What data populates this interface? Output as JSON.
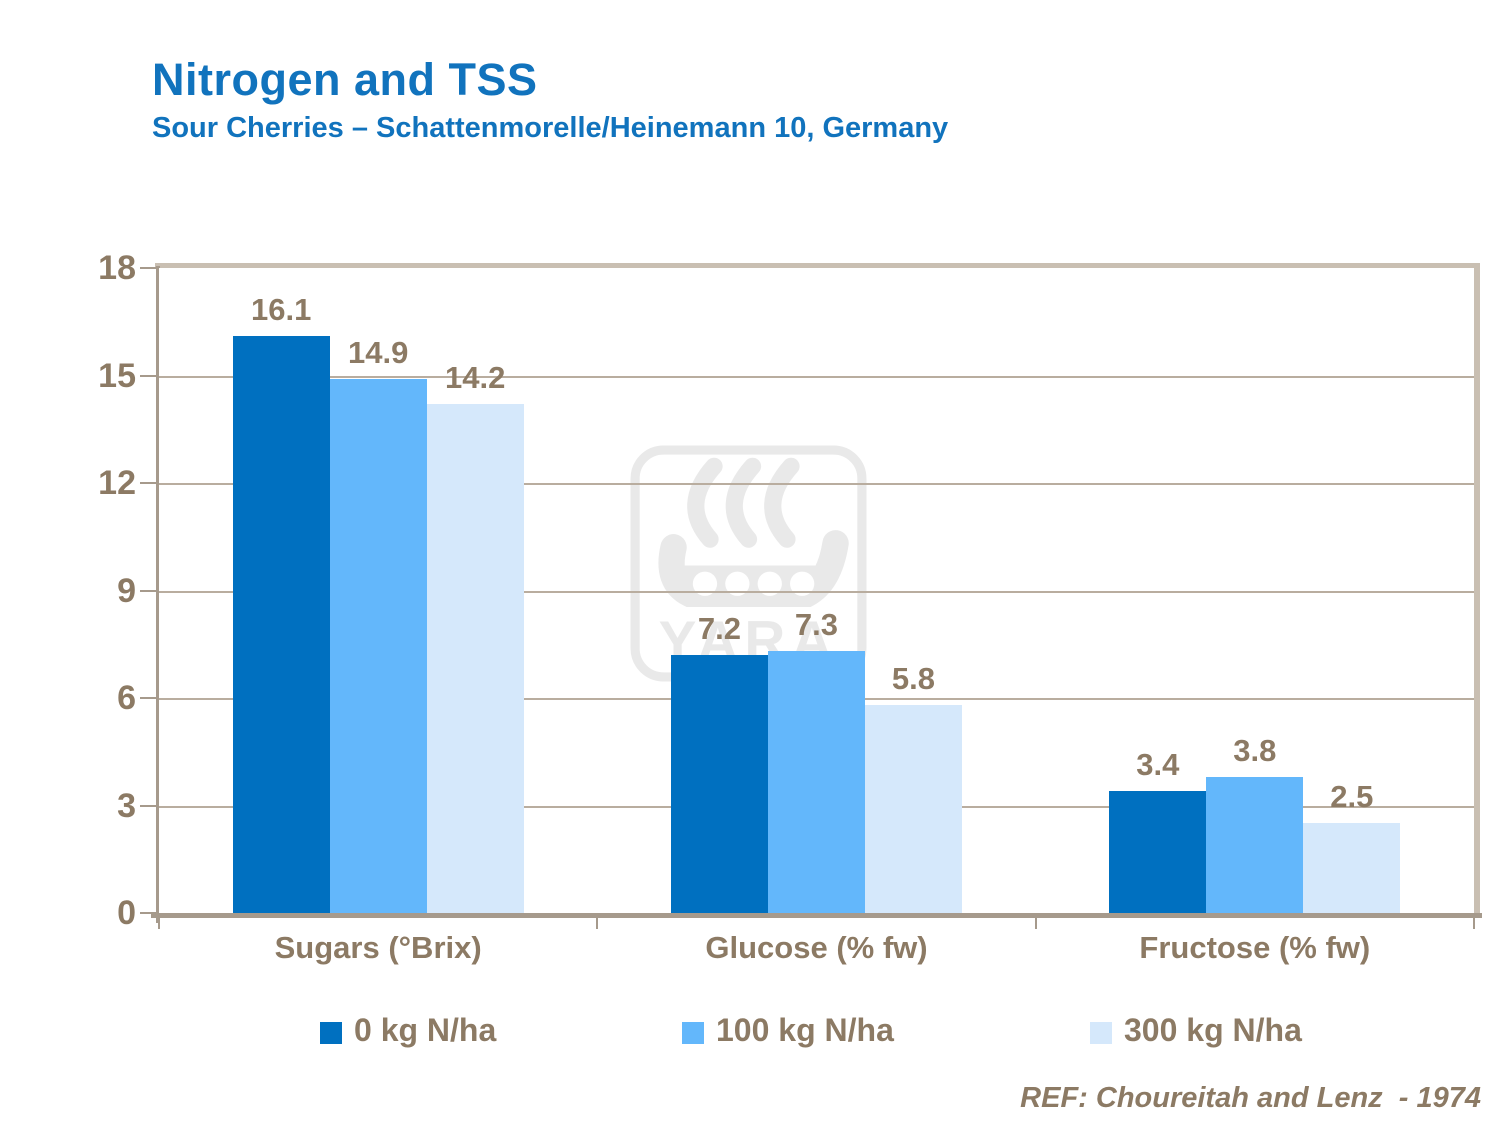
{
  "header": {
    "title": "Nitrogen and TSS",
    "subtitle": "Sour Cherries – Schattenmorelle/Heinemann 10, Germany",
    "title_color": "#1173BD"
  },
  "chart_data": {
    "type": "bar",
    "title": "Nitrogen and TSS",
    "subtitle": "Sour Cherries – Schattenmorelle/Heinemann 10, Germany",
    "categories": [
      "Sugars (°Brix)",
      "Glucose (% fw)",
      "Fructose (% fw)"
    ],
    "series": [
      {
        "name": "0 kg N/ha",
        "color": "#0070C0",
        "values": [
          16.1,
          7.2,
          3.4
        ]
      },
      {
        "name": "100 kg N/ha",
        "color": "#63B7FB",
        "values": [
          14.9,
          7.3,
          3.8
        ]
      },
      {
        "name": "300 kg N/ha",
        "color": "#D5E8FB",
        "values": [
          14.2,
          5.8,
          2.5
        ]
      }
    ],
    "ylim": [
      0,
      18
    ],
    "yticks": [
      0,
      3,
      6,
      9,
      12,
      15,
      18
    ],
    "xlabel": "",
    "ylabel": "",
    "grid": true,
    "data_labels": true,
    "legend_position": "bottom"
  },
  "watermark": {
    "text": "YARA"
  },
  "footer": {
    "reference": "REF: Choureitah and Lenz  - 1974"
  },
  "colors": {
    "label_text": "#8C7A64",
    "axis": "#A69A8C",
    "grid": "#B9AD9F",
    "wall": "#C9BFB2",
    "watermark": "#E9E9E9"
  }
}
